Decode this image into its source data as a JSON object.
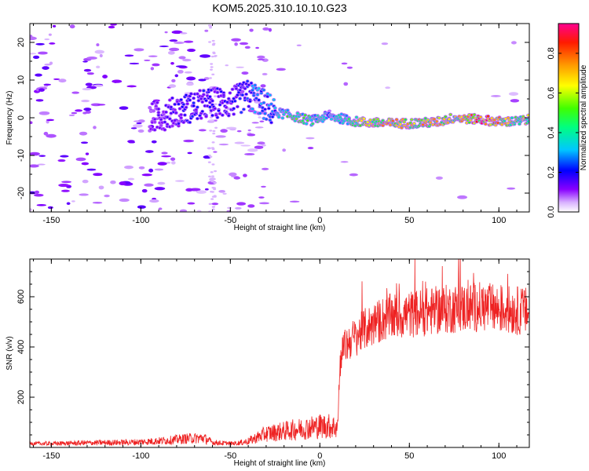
{
  "title": "KOM5.2025.310.10.10.G23",
  "chart_data": [
    {
      "type": "heatmap",
      "title": "KOM5.2025.310.10.10.G23",
      "xlabel": "Height of straight line (km)",
      "ylabel": "Frequency (Hz)",
      "xlim": [
        -162,
        117
      ],
      "ylim": [
        -25,
        25
      ],
      "x_ticks": [
        -150,
        -100,
        -50,
        0,
        50,
        100
      ],
      "x_tick_labels": [
        "-150",
        "-100",
        "-50",
        "0",
        "50",
        "100"
      ],
      "y_ticks": [
        -20,
        -10,
        0,
        10,
        20
      ],
      "y_tick_labels": [
        "-20",
        "-10",
        "0",
        "10",
        "20"
      ],
      "ridge": [
        {
          "x": -85,
          "f": 1,
          "a": 0.18
        },
        {
          "x": -70,
          "f": 3,
          "a": 0.25
        },
        {
          "x": -60,
          "f": 4,
          "a": 0.22
        },
        {
          "x": -50,
          "f": 4,
          "a": 0.2
        },
        {
          "x": -40,
          "f": 6,
          "a": 0.3
        },
        {
          "x": -35,
          "f": 5,
          "a": 0.35
        },
        {
          "x": -30,
          "f": 3,
          "a": 0.3
        },
        {
          "x": -25,
          "f": 1.5,
          "a": 0.35
        },
        {
          "x": -15,
          "f": 0.5,
          "a": 0.6
        },
        {
          "x": -5,
          "f": -0.8,
          "a": 0.5
        },
        {
          "x": 5,
          "f": 0.5,
          "a": 0.4
        },
        {
          "x": 20,
          "f": -1,
          "a": 0.6
        },
        {
          "x": 35,
          "f": -1.5,
          "a": 0.85
        },
        {
          "x": 50,
          "f": -1.5,
          "a": 0.75
        },
        {
          "x": 65,
          "f": -1.2,
          "a": 0.8
        },
        {
          "x": 75,
          "f": 0,
          "a": 0.7
        },
        {
          "x": 90,
          "f": -0.5,
          "a": 0.95
        },
        {
          "x": 100,
          "f": -1,
          "a": 0.85
        },
        {
          "x": 110,
          "f": -1,
          "a": 0.6
        },
        {
          "x": 117,
          "f": -0.5,
          "a": 0.7
        }
      ],
      "colorbar": {
        "label": "Normalized spectral amplitude",
        "range": [
          0,
          0.95
        ],
        "ticks": [
          0.0,
          0.2,
          0.4,
          0.6,
          0.8
        ],
        "tick_labels": [
          "0.0",
          "0.2",
          "0.4",
          "0.6",
          "0.8"
        ]
      }
    },
    {
      "type": "line",
      "xlabel": "Height of straight line (km)",
      "ylabel": "SNR (v/v)",
      "xlim": [
        -162,
        117
      ],
      "ylim": [
        0,
        750
      ],
      "x_ticks": [
        -150,
        -100,
        -50,
        0,
        50,
        100
      ],
      "x_tick_labels": [
        "-150",
        "-100",
        "-50",
        "0",
        "50",
        "100"
      ],
      "y_ticks": [
        200,
        400,
        600
      ],
      "y_tick_labels": [
        "200",
        "400",
        "600"
      ],
      "series": [
        {
          "name": "SNR",
          "color": "#ee2222",
          "x": [
            -162,
            -150,
            -130,
            -110,
            -100,
            -85,
            -75,
            -65,
            -60,
            -50,
            -45,
            -40,
            -35,
            -30,
            -25,
            -20,
            -15,
            -10,
            -5,
            0,
            5,
            10,
            11,
            12,
            14,
            16,
            18,
            20,
            25,
            30,
            35,
            40,
            50,
            60,
            70,
            80,
            90,
            100,
            110,
            117
          ],
          "y": [
            15,
            15,
            18,
            20,
            22,
            28,
            35,
            38,
            20,
            15,
            18,
            25,
            40,
            55,
            60,
            65,
            70,
            75,
            80,
            85,
            85,
            80,
            300,
            380,
            400,
            420,
            430,
            440,
            470,
            490,
            510,
            520,
            530,
            540,
            550,
            555,
            560,
            550,
            545,
            540
          ]
        }
      ]
    }
  ]
}
